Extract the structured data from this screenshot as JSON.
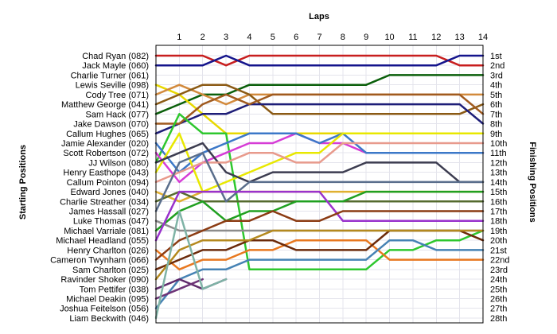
{
  "chart_data": {
    "type": "line",
    "title": "Laps",
    "ylabel_left": "Starting Positions",
    "ylabel_right": "Finishing Positions",
    "x_ticks": [
      1,
      2,
      3,
      4,
      5,
      6,
      7,
      8,
      9,
      10,
      11,
      12,
      13,
      14
    ],
    "x_range": [
      0,
      14
    ],
    "position_range": [
      1,
      28
    ],
    "grid": true,
    "drivers": [
      "Chad Ryan (082)",
      "Jack Mayle (060)",
      "Charlie Turner (061)",
      "Lewis Seville (098)",
      "Cody Tree (071)",
      "Matthew George (041)",
      "Sam Hack (077)",
      "Jake Dawson (070)",
      "Callum Hughes (065)",
      "Jamie Alexander (020)",
      "Scott Robertson (072)",
      "JJ Wilson (080)",
      "Henry Easthope (043)",
      "Callum Pointon (094)",
      "Edward Jones (040)",
      "Charlie Streather (034)",
      "James Hassall (027)",
      "Luke Thomas (047)",
      "Michael Varriale (081)",
      "Michael Headland (055)",
      "Henry Charlton (026)",
      "Cameron Twynham (066)",
      "Sam Charlton (025)",
      "Ravinder Shoker (090)",
      "Tom Pettifer (038)",
      "Michael Deakin (095)",
      "Joshua Feitelson (056)",
      "Liam Beckwith (046)"
    ],
    "finishing_positions": [
      "1st",
      "2nd",
      "3rd",
      "4th",
      "5th",
      "6th",
      "7th",
      "8th",
      "9th",
      "10th",
      "11th",
      "12th",
      "13th",
      "14th",
      "15th",
      "16th",
      "17th",
      "18th",
      "19th",
      "20th",
      "21st",
      "22nd",
      "23rd",
      "24th",
      "25th",
      "26th",
      "27th",
      "28th"
    ],
    "series": [
      {
        "color": "#c81e1e",
        "positions": [
          1,
          1,
          1,
          2,
          1,
          1,
          1,
          1,
          1,
          1,
          1,
          1,
          1,
          2,
          2
        ]
      },
      {
        "color": "#14148c",
        "positions": [
          2,
          2,
          2,
          1,
          2,
          2,
          2,
          2,
          2,
          2,
          2,
          2,
          2,
          1,
          1
        ]
      },
      {
        "color": "#0a5f0a",
        "positions": [
          7,
          6,
          5,
          5,
          4,
          4,
          4,
          4,
          4,
          4,
          3,
          3,
          3,
          3,
          3
        ]
      },
      {
        "color": "#e8d800",
        "positions": [
          4,
          5,
          7,
          9,
          9,
          9,
          9,
          9,
          9,
          9,
          9,
          9,
          9,
          9,
          9
        ]
      },
      {
        "color": "#d28a3c",
        "positions": [
          5,
          4,
          5,
          6,
          5,
          5,
          5,
          5,
          5,
          5,
          5,
          5,
          5,
          5,
          5
        ]
      },
      {
        "color": "#8b5a14",
        "positions": [
          6,
          5,
          4,
          4,
          5,
          7,
          7,
          7,
          7,
          7,
          7,
          7,
          7,
          7,
          6
        ]
      },
      {
        "color": "#1e1e78",
        "positions": [
          9,
          8,
          7,
          7,
          6,
          6,
          6,
          6,
          6,
          6,
          6,
          6,
          6,
          6,
          8
        ]
      },
      {
        "color": "#a05a1e",
        "positions": [
          8,
          8,
          6,
          5,
          6,
          5,
          5,
          5,
          5,
          5,
          5,
          5,
          5,
          5,
          7
        ]
      },
      {
        "color": "#2ec72e",
        "positions": [
          12,
          7,
          9,
          9,
          23,
          23,
          23,
          23,
          23,
          23,
          21,
          21,
          20,
          20,
          19
        ]
      },
      {
        "color": "#d63cd6",
        "positions": [
          11,
          14,
          12,
          11,
          10,
          10,
          9,
          10,
          10,
          11,
          11,
          11,
          11,
          11,
          11
        ]
      },
      {
        "color": "#3c78c8",
        "positions": [
          10,
          13,
          11,
          10,
          9,
          9,
          9,
          10,
          9,
          11,
          11,
          11,
          11,
          11,
          11
        ]
      },
      {
        "color": "#e8e800",
        "positions": [
          13,
          9,
          15,
          14,
          13,
          12,
          11,
          11,
          9,
          9,
          9,
          9,
          9,
          9,
          9
        ]
      },
      {
        "color": "#3c3c50",
        "positions": [
          12,
          11,
          10,
          13,
          14,
          13,
          13,
          13,
          13,
          12,
          12,
          12,
          12,
          14,
          14
        ]
      },
      {
        "color": "#e89a8c",
        "positions": [
          14,
          13,
          12,
          12,
          11,
          11,
          12,
          12,
          10,
          10,
          10,
          10,
          10,
          10,
          10
        ]
      },
      {
        "color": "#e0b030",
        "positions": [
          15,
          16,
          15,
          15,
          15,
          15,
          15,
          15,
          15,
          15,
          15,
          15,
          15,
          15,
          15
        ]
      },
      {
        "color": "#556b2f",
        "positions": [
          16,
          15,
          16,
          16,
          16,
          16,
          16,
          16,
          16,
          16,
          16,
          16,
          16,
          16,
          16
        ]
      },
      {
        "color": "#20a020",
        "positions": [
          19,
          17,
          16,
          18,
          17,
          17,
          16,
          16,
          16,
          15,
          15,
          15,
          15,
          15,
          15
        ]
      },
      {
        "color": "#5a6e8c",
        "positions": [
          17,
          12,
          11,
          16,
          14,
          14,
          14,
          14,
          14,
          14,
          14,
          14,
          14,
          14,
          14
        ]
      },
      {
        "color": "#8c8c8c",
        "positions": [
          18,
          19,
          19,
          19,
          19,
          19,
          19,
          19,
          19,
          19,
          19,
          19,
          19,
          19,
          19
        ]
      },
      {
        "color": "#9932cc",
        "positions": [
          20,
          15,
          15,
          15,
          15,
          15,
          15,
          15,
          18,
          18,
          18,
          18,
          18,
          18,
          18
        ]
      },
      {
        "color": "#e87820",
        "positions": [
          21,
          23,
          22,
          22,
          21,
          21,
          20,
          20,
          20,
          20,
          22,
          22,
          22,
          22,
          22
        ]
      },
      {
        "color": "#8c3c14",
        "positions": [
          22,
          20,
          19,
          18,
          18,
          17,
          18,
          18,
          17,
          17,
          17,
          17,
          17,
          17,
          17
        ]
      },
      {
        "color": "#6b2a0a",
        "positions": [
          23,
          22,
          21,
          21,
          20,
          20,
          21,
          21,
          21,
          21,
          19,
          19,
          19,
          19,
          20
        ]
      },
      {
        "color": "#b4891e",
        "positions": [
          24,
          21,
          20,
          20,
          20,
          19,
          19,
          19,
          19,
          19,
          19,
          19,
          19,
          19,
          19
        ]
      },
      {
        "color": "#4682b4",
        "positions": [
          27,
          24,
          23,
          23,
          22,
          22,
          22,
          22,
          22,
          22,
          20,
          20,
          21,
          21,
          21
        ]
      },
      {
        "color": "#5f2a6b",
        "positions": [
          25,
          24,
          25,
          24
        ]
      },
      {
        "color": "#6e3478",
        "positions": [
          26,
          25,
          24
        ]
      },
      {
        "color": "#7fb3a6",
        "positions": [
          28,
          17,
          25,
          24
        ]
      }
    ]
  }
}
